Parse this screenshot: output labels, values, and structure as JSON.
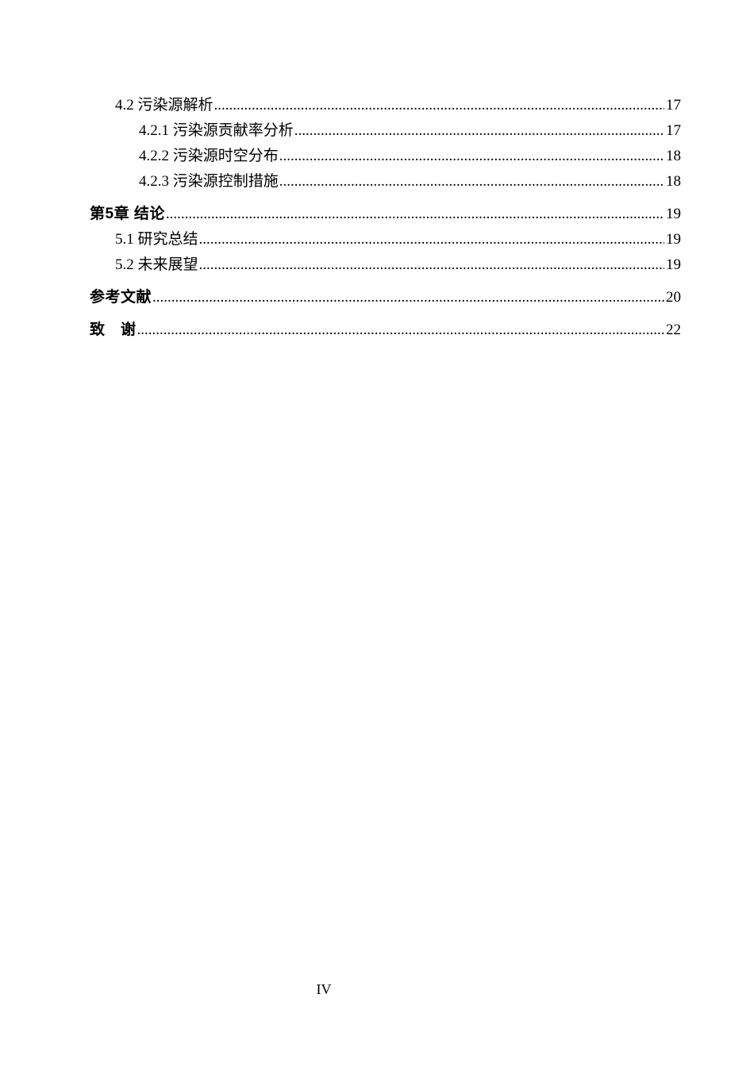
{
  "toc": {
    "entries": [
      {
        "level": 2,
        "bold": false,
        "label": "4.2 污染源解析",
        "page": "17"
      },
      {
        "level": 3,
        "bold": false,
        "label": "4.2.1 污染源贡献率分析",
        "page": "17"
      },
      {
        "level": 3,
        "bold": false,
        "label": "4.2.2 污染源时空分布",
        "page": "18"
      },
      {
        "level": 3,
        "bold": false,
        "label": "4.2.3 污染源控制措施",
        "page": "18"
      },
      {
        "level": 1,
        "bold": true,
        "label": "第5章 结论",
        "page": "19"
      },
      {
        "level": 2,
        "bold": false,
        "label": "5.1 研究总结",
        "page": "19"
      },
      {
        "level": 2,
        "bold": false,
        "label": "5.2 未来展望",
        "page": "19"
      },
      {
        "level": 1,
        "bold": true,
        "label": "参考文献",
        "page": "20"
      },
      {
        "level": 1,
        "bold": true,
        "label": "致　谢",
        "page": "22"
      }
    ]
  },
  "footer": {
    "page_number": "IV"
  }
}
